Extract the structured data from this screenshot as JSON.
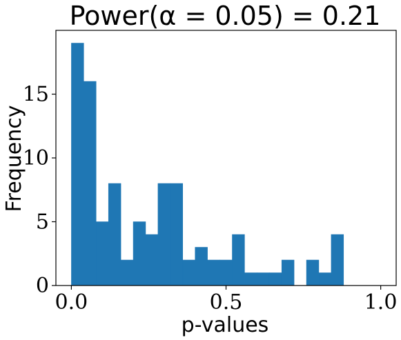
{
  "chart_data": {
    "type": "bar",
    "title": "Power(α = 0.05) = 0.21",
    "xlabel": "p-values",
    "ylabel": "Frequency",
    "xlim": [
      -0.05,
      1.05
    ],
    "ylim": [
      0,
      20
    ],
    "bar_color": "#1f77b4",
    "bin_width": 0.04,
    "bins": [
      {
        "x": 0.0,
        "count": 19
      },
      {
        "x": 0.04,
        "count": 16
      },
      {
        "x": 0.08,
        "count": 5
      },
      {
        "x": 0.12,
        "count": 8
      },
      {
        "x": 0.16,
        "count": 2
      },
      {
        "x": 0.2,
        "count": 5
      },
      {
        "x": 0.24,
        "count": 4
      },
      {
        "x": 0.28,
        "count": 8
      },
      {
        "x": 0.32,
        "count": 8
      },
      {
        "x": 0.36,
        "count": 2
      },
      {
        "x": 0.4,
        "count": 3
      },
      {
        "x": 0.44,
        "count": 2
      },
      {
        "x": 0.48,
        "count": 2
      },
      {
        "x": 0.52,
        "count": 4
      },
      {
        "x": 0.56,
        "count": 1
      },
      {
        "x": 0.6,
        "count": 1
      },
      {
        "x": 0.64,
        "count": 1
      },
      {
        "x": 0.68,
        "count": 2
      },
      {
        "x": 0.72,
        "count": 0
      },
      {
        "x": 0.76,
        "count": 2
      },
      {
        "x": 0.8,
        "count": 1
      },
      {
        "x": 0.84,
        "count": 4
      }
    ],
    "xticks": [
      {
        "value": 0.0,
        "label": "0.0"
      },
      {
        "value": 0.5,
        "label": "0.5"
      },
      {
        "value": 1.0,
        "label": "1.0"
      }
    ],
    "yticks": [
      {
        "value": 0,
        "label": "0"
      },
      {
        "value": 5,
        "label": "5"
      },
      {
        "value": 10,
        "label": "10"
      },
      {
        "value": 15,
        "label": "15"
      }
    ],
    "grid": false,
    "legend": "none"
  }
}
